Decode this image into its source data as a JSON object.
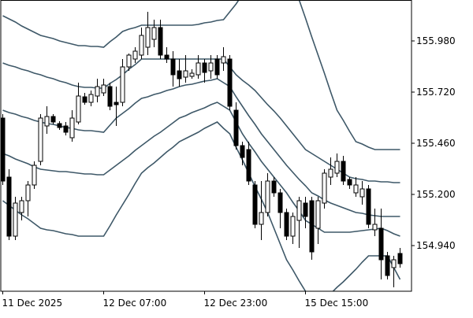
{
  "chart_data": {
    "type": "candlestick",
    "x": [
      "11 Dec 2025",
      null,
      null,
      null,
      null,
      null,
      null,
      null,
      null,
      null,
      null,
      null,
      null,
      null,
      null,
      null,
      "12 Dec 07:00",
      null,
      null,
      null,
      null,
      null,
      null,
      null,
      null,
      null,
      null,
      null,
      null,
      null,
      null,
      null,
      "12 Dec 23:00",
      null,
      null,
      null,
      null,
      null,
      null,
      null,
      null,
      null,
      null,
      null,
      null,
      null,
      null,
      null,
      "15 Dec 15:00",
      null,
      null,
      null,
      null,
      null,
      null,
      null,
      null,
      null,
      null,
      null,
      null,
      null,
      null,
      null
    ],
    "open": [
      155.588,
      155.288,
      154.988,
      155.108,
      155.168,
      155.248,
      155.368,
      155.548,
      155.596,
      155.56,
      155.548,
      155.488,
      155.568,
      155.696,
      155.668,
      155.7,
      155.716,
      155.748,
      155.668,
      155.668,
      155.848,
      155.888,
      155.908,
      155.948,
      155.988,
      156.048,
      155.908,
      155.888,
      155.828,
      155.796,
      155.8,
      155.808,
      155.868,
      155.828,
      155.888,
      155.868,
      155.888,
      155.628,
      155.448,
      155.428,
      155.248,
      155.048,
      155.108,
      155.268,
      155.208,
      155.108,
      154.988,
      155.068,
      155.156,
      155.168,
      155.028,
      155.156,
      155.288,
      155.308,
      155.368,
      155.276,
      155.208,
      155.188,
      155.228,
      155.02,
      155.028,
      154.888,
      154.828,
      154.9
    ],
    "high": [
      155.608,
      155.328,
      155.188,
      155.188,
      155.268,
      155.368,
      155.608,
      155.648,
      155.608,
      155.572,
      155.568,
      155.628,
      155.768,
      155.716,
      155.728,
      155.788,
      155.788,
      155.768,
      155.748,
      155.888,
      155.916,
      155.948,
      156.048,
      156.128,
      156.088,
      156.088,
      155.948,
      155.928,
      155.888,
      155.908,
      155.836,
      155.908,
      155.888,
      155.908,
      155.908,
      155.948,
      155.908,
      155.668,
      155.468,
      155.468,
      155.268,
      155.268,
      155.308,
      155.288,
      155.228,
      155.128,
      155.108,
      155.188,
      155.188,
      155.188,
      155.188,
      155.328,
      155.388,
      155.408,
      155.396,
      155.288,
      155.288,
      155.268,
      155.248,
      155.128,
      155.128,
      154.908,
      154.888,
      154.928
    ],
    "low": [
      155.248,
      154.968,
      154.968,
      155.068,
      155.088,
      155.228,
      155.348,
      155.508,
      155.556,
      155.528,
      155.5,
      155.468,
      155.556,
      155.656,
      155.648,
      155.668,
      155.7,
      155.628,
      155.548,
      155.648,
      155.828,
      155.868,
      155.888,
      155.908,
      155.948,
      155.888,
      155.868,
      155.748,
      155.748,
      155.768,
      155.788,
      155.788,
      155.768,
      155.788,
      155.788,
      155.828,
      155.628,
      155.428,
      155.348,
      155.248,
      155.028,
      154.968,
      155.088,
      155.188,
      155.028,
      154.968,
      154.948,
      154.928,
      155.028,
      154.868,
      154.948,
      155.128,
      155.248,
      155.288,
      155.248,
      155.228,
      155.188,
      155.148,
      155.028,
      154.988,
      154.768,
      154.768,
      154.728,
      154.828
    ],
    "close": [
      155.268,
      154.988,
      155.156,
      155.168,
      155.248,
      155.348,
      155.588,
      155.596,
      155.568,
      155.54,
      155.516,
      155.588,
      155.7,
      155.668,
      155.708,
      155.748,
      155.756,
      155.648,
      155.656,
      155.848,
      155.908,
      155.928,
      156.008,
      156.048,
      156.048,
      155.908,
      155.888,
      155.808,
      155.788,
      155.828,
      155.816,
      155.868,
      155.82,
      155.868,
      155.808,
      155.9,
      155.648,
      155.448,
      155.388,
      155.268,
      155.048,
      155.108,
      155.268,
      155.208,
      155.108,
      154.988,
      155.088,
      155.168,
      155.088,
      154.908,
      155.168,
      155.308,
      155.328,
      155.368,
      155.268,
      155.248,
      155.248,
      155.228,
      155.048,
      155.048,
      154.868,
      154.788,
      154.868,
      154.848
    ],
    "up_color": "#ffffff",
    "down_color": "#000000",
    "candle_color": "#000000",
    "series": [
      {
        "color": "#3e5868",
        "values": [
          156.108,
          156.092,
          156.076,
          156.056,
          156.04,
          156.024,
          156.008,
          156.0,
          155.992,
          155.98,
          155.972,
          155.964,
          155.956,
          155.956,
          155.952,
          155.952,
          155.948,
          155.976,
          156.0,
          156.028,
          156.04,
          156.048,
          156.06,
          156.06,
          156.06,
          156.06,
          156.06,
          156.06,
          156.06,
          156.06,
          156.06,
          156.064,
          156.072,
          156.076,
          156.084,
          156.088,
          156.128,
          156.168,
          156.216,
          156.26,
          156.308,
          156.308,
          156.308,
          156.308,
          156.308,
          156.268,
          156.228,
          156.188,
          156.096,
          156.0,
          155.908,
          155.816,
          155.72,
          155.628,
          155.576,
          155.52,
          155.468,
          155.456,
          155.44,
          155.428,
          155.428,
          155.428,
          155.428,
          155.428
        ]
      },
      {
        "color": "#3e5868",
        "values": [
          155.868,
          155.856,
          155.848,
          155.836,
          155.828,
          155.816,
          155.808,
          155.796,
          155.788,
          155.776,
          155.768,
          155.756,
          155.748,
          155.744,
          155.744,
          155.74,
          155.74,
          155.764,
          155.784,
          155.808,
          155.836,
          155.86,
          155.888,
          155.888,
          155.888,
          155.888,
          155.888,
          155.888,
          155.888,
          155.888,
          155.888,
          155.888,
          155.888,
          155.888,
          155.888,
          155.888,
          155.848,
          155.808,
          155.78,
          155.756,
          155.728,
          155.692,
          155.656,
          155.624,
          155.588,
          155.548,
          155.508,
          155.468,
          155.428,
          155.408,
          155.388,
          155.368,
          155.348,
          155.328,
          155.308,
          155.288,
          155.28,
          155.276,
          155.268,
          155.268,
          155.264,
          155.264,
          155.26,
          155.26
        ]
      },
      {
        "color": "#3e5868",
        "values": [
          155.628,
          155.616,
          155.608,
          155.596,
          155.588,
          155.576,
          155.568,
          155.56,
          155.556,
          155.548,
          155.54,
          155.536,
          155.528,
          155.524,
          155.524,
          155.52,
          155.516,
          155.552,
          155.588,
          155.612,
          155.636,
          155.664,
          155.688,
          155.696,
          155.708,
          155.716,
          155.728,
          155.736,
          155.748,
          155.756,
          155.76,
          155.768,
          155.776,
          155.78,
          155.788,
          155.768,
          155.748,
          155.696,
          155.648,
          155.6,
          155.556,
          155.508,
          155.468,
          155.428,
          155.388,
          155.348,
          155.312,
          155.276,
          155.244,
          155.208,
          155.192,
          155.172,
          155.156,
          155.144,
          155.132,
          155.12,
          155.108,
          155.104,
          155.096,
          155.092,
          155.088,
          155.088,
          155.088,
          155.088
        ]
      },
      {
        "color": "#3e5868",
        "values": [
          155.408,
          155.396,
          155.38,
          155.368,
          155.356,
          155.34,
          155.328,
          155.324,
          155.32,
          155.316,
          155.316,
          155.312,
          155.308,
          155.304,
          155.304,
          155.3,
          155.3,
          155.324,
          155.348,
          155.372,
          155.396,
          155.424,
          155.448,
          155.472,
          155.496,
          155.516,
          155.54,
          155.564,
          155.588,
          155.6,
          155.616,
          155.628,
          155.64,
          155.656,
          155.668,
          155.648,
          155.628,
          155.568,
          155.508,
          155.46,
          155.416,
          155.368,
          155.328,
          155.288,
          155.248,
          155.208,
          155.16,
          155.116,
          155.068,
          155.048,
          155.028,
          155.008,
          155.008,
          155.008,
          155.008,
          155.008,
          155.012,
          155.016,
          155.02,
          155.024,
          155.028,
          155.016,
          155.0,
          154.988
        ]
      },
      {
        "color": "#3e5868",
        "values": [
          155.168,
          155.144,
          155.12,
          155.096,
          155.076,
          155.052,
          155.028,
          155.02,
          155.016,
          155.008,
          155.0,
          154.996,
          154.988,
          154.988,
          154.988,
          154.988,
          154.988,
          155.04,
          155.096,
          155.148,
          155.2,
          155.256,
          155.308,
          155.336,
          155.36,
          155.388,
          155.416,
          155.44,
          155.468,
          155.484,
          155.5,
          155.516,
          155.536,
          155.552,
          155.568,
          155.536,
          155.508,
          155.44,
          155.376,
          155.308,
          155.24,
          155.176,
          155.108,
          155.028,
          154.948,
          154.868,
          154.816,
          154.76,
          154.708,
          154.696,
          154.68,
          154.668,
          154.696,
          154.728,
          154.756,
          154.788,
          154.82,
          154.856,
          154.888,
          154.888,
          154.888,
          154.888,
          154.828,
          154.768
        ]
      }
    ],
    "ylim": [
      154.708,
      156.188
    ],
    "yticks": [
      {
        "value": 154.94,
        "label": "154.940"
      },
      {
        "value": 155.2,
        "label": "155.200"
      },
      {
        "value": 155.46,
        "label": "155.460"
      },
      {
        "value": 155.72,
        "label": "155.720"
      },
      {
        "value": 155.98,
        "label": "155.980"
      }
    ],
    "grid": false
  }
}
